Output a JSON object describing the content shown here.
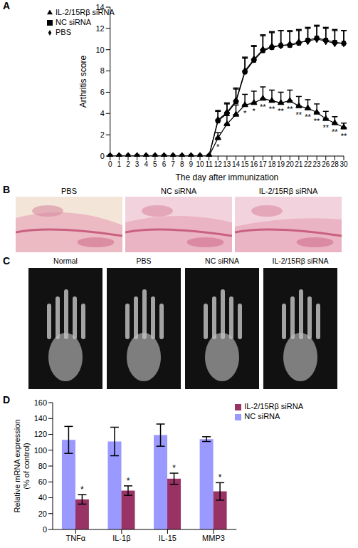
{
  "chart_data": [
    {
      "panel": "A",
      "type": "line",
      "x_label": "The day after immunization",
      "y_label": "Arthritis score",
      "categories": [
        "0",
        "1",
        "2",
        "3",
        "4",
        "5",
        "6",
        "7",
        "8",
        "9",
        "10",
        "11",
        "12",
        "13",
        "14",
        "15",
        "16",
        "17",
        "18",
        "19",
        "20",
        "21",
        "22",
        "23",
        "26",
        "28",
        "30"
      ],
      "ylim": [
        0,
        14
      ],
      "yticks": [
        0,
        2,
        4,
        6,
        8,
        10,
        12,
        14
      ],
      "legend": "upper left",
      "series": [
        {
          "name": "PBS",
          "color": "#000000",
          "marker": "diamond",
          "values": [
            0,
            0,
            0,
            0,
            0,
            0,
            0,
            0,
            0,
            0,
            0,
            0,
            3.4,
            4.1,
            5.2,
            8.0,
            9.1,
            10.0,
            10.3,
            10.4,
            10.5,
            10.7,
            10.8,
            11.0,
            10.8,
            10.6,
            10.6
          ],
          "error_upper": [
            0,
            0,
            0,
            0,
            0,
            0,
            0,
            0,
            0,
            0,
            0,
            0,
            0.9,
            0.9,
            1.2,
            1.3,
            1.3,
            1.4,
            1.4,
            1.4,
            1.3,
            1.2,
            1.2,
            1.2,
            1.2,
            1.2,
            1.2
          ]
        },
        {
          "name": "NC siRNA",
          "color": "#000000",
          "marker": "square",
          "values": [
            0,
            0,
            0,
            0,
            0,
            0,
            0,
            0,
            0,
            0,
            0,
            0,
            3.3,
            4.0,
            5.1,
            7.9,
            9.0,
            9.9,
            10.2,
            10.4,
            10.4,
            10.6,
            10.9,
            11.1,
            10.9,
            10.7,
            10.6
          ],
          "error_upper": [
            0,
            0,
            0,
            0,
            0,
            0,
            0,
            0,
            0,
            0,
            0,
            0,
            0.9,
            0.9,
            1.2,
            1.3,
            1.3,
            1.4,
            1.4,
            1.4,
            1.3,
            1.2,
            1.2,
            1.2,
            1.2,
            1.2,
            1.2
          ]
        },
        {
          "name": "IL-2/15Rβ siRNA",
          "color": "#000000",
          "marker": "triangle",
          "values": [
            0,
            0,
            0,
            0,
            0,
            0,
            0,
            0,
            0,
            0,
            0,
            0,
            1.7,
            3.0,
            3.9,
            4.8,
            5.0,
            5.4,
            5.2,
            5.0,
            5.2,
            4.7,
            4.5,
            4.1,
            3.5,
            3.1,
            2.7
          ],
          "error_upper": [
            0,
            0,
            0,
            0,
            0,
            0,
            0,
            0,
            0,
            0,
            0,
            0,
            0.5,
            0.8,
            0.9,
            1.0,
            1.1,
            1.1,
            1.0,
            1.0,
            1.0,
            0.9,
            0.8,
            0.8,
            0.7,
            0.6,
            0.4
          ],
          "significance": [
            null,
            null,
            null,
            null,
            null,
            null,
            null,
            null,
            null,
            null,
            null,
            null,
            "*",
            null,
            null,
            "*",
            "*",
            "**",
            "**",
            "**",
            "**",
            "**",
            "**",
            "**",
            "**",
            "**",
            "**"
          ]
        }
      ]
    },
    {
      "panel": "D",
      "type": "bar",
      "y_label": "Relative mRNA expression (% of control)",
      "categories": [
        "TNFα",
        "IL-1β",
        "IL-15",
        "MMP3"
      ],
      "ylim": [
        0,
        160
      ],
      "yticks": [
        0,
        20,
        40,
        60,
        80,
        100,
        120,
        140,
        160
      ],
      "legend": "upper right",
      "series": [
        {
          "name": "NC siRNA",
          "color": "#9999ff",
          "values": [
            113,
            111,
            119,
            114
          ],
          "errors": [
            17,
            18,
            14,
            3
          ]
        },
        {
          "name": "IL-2/15Rβ siRNA",
          "color": "#993366",
          "values": [
            38,
            49,
            64,
            48
          ],
          "errors": [
            6,
            6,
            7,
            11
          ],
          "significance": [
            "*",
            "*",
            "*",
            "*"
          ]
        }
      ]
    }
  ],
  "image_panels": [
    {
      "panel": "B",
      "labels": [
        "PBS",
        "NC siRNA",
        "IL-2/15Rβ siRNA"
      ]
    },
    {
      "panel": "C",
      "labels": [
        "Normal",
        "PBS",
        "NC siRNA",
        "IL-2/15Rβ siRNA"
      ]
    }
  ]
}
